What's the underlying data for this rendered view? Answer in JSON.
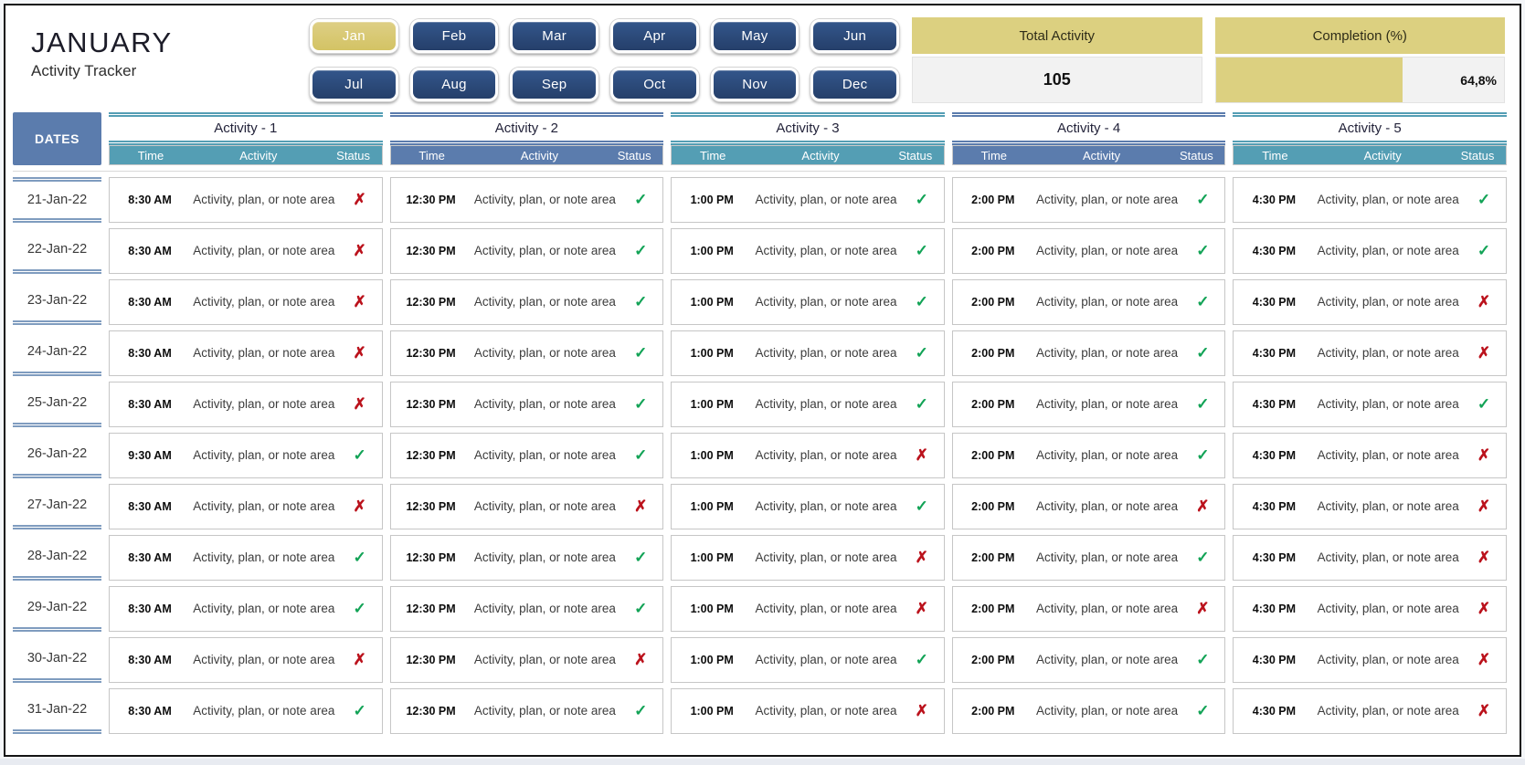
{
  "app": {
    "title": "JANUARY",
    "subtitle": "Activity Tracker"
  },
  "months": {
    "items": [
      "Jan",
      "Feb",
      "Mar",
      "Apr",
      "May",
      "Jun",
      "Jul",
      "Aug",
      "Sep",
      "Oct",
      "Nov",
      "Dec"
    ],
    "selected": "Jan"
  },
  "summary": {
    "total": {
      "label": "Total Activity",
      "value": "105"
    },
    "completion": {
      "label": "Completion (%)",
      "value": "64,8%",
      "percent": 64.8
    }
  },
  "colors": {
    "navy_button": "#2c4c7c",
    "selected_month": "#d8ca70",
    "khaki_header": "#dcd080",
    "teal_accent": "#549eb4",
    "blue_accent": "#5b7cad",
    "done_green": "#12a356",
    "missed_red": "#bb121c"
  },
  "table": {
    "dates_label": "DATES",
    "subcolumns": [
      "Time",
      "Activity",
      "Status"
    ],
    "groups": [
      {
        "title": "Activity - 1",
        "theme": "teal"
      },
      {
        "title": "Activity - 2",
        "theme": "blue"
      },
      {
        "title": "Activity - 3",
        "theme": "teal"
      },
      {
        "title": "Activity - 4",
        "theme": "blue"
      },
      {
        "title": "Activity - 5",
        "theme": "teal"
      }
    ],
    "note_text": "Activity, plan, or note area",
    "status_icons": {
      "done": "✓",
      "missed": "✗"
    },
    "rows": [
      {
        "date": "21-Jan-22",
        "cells": [
          {
            "time": "8:30 AM",
            "status": "missed"
          },
          {
            "time": "12:30 PM",
            "status": "done"
          },
          {
            "time": "1:00 PM",
            "status": "done"
          },
          {
            "time": "2:00 PM",
            "status": "done"
          },
          {
            "time": "4:30 PM",
            "status": "done"
          }
        ]
      },
      {
        "date": "22-Jan-22",
        "cells": [
          {
            "time": "8:30 AM",
            "status": "missed"
          },
          {
            "time": "12:30 PM",
            "status": "done"
          },
          {
            "time": "1:00 PM",
            "status": "done"
          },
          {
            "time": "2:00 PM",
            "status": "done"
          },
          {
            "time": "4:30 PM",
            "status": "done"
          }
        ]
      },
      {
        "date": "23-Jan-22",
        "cells": [
          {
            "time": "8:30 AM",
            "status": "missed"
          },
          {
            "time": "12:30 PM",
            "status": "done"
          },
          {
            "time": "1:00 PM",
            "status": "done"
          },
          {
            "time": "2:00 PM",
            "status": "done"
          },
          {
            "time": "4:30 PM",
            "status": "missed"
          }
        ]
      },
      {
        "date": "24-Jan-22",
        "cells": [
          {
            "time": "8:30 AM",
            "status": "missed"
          },
          {
            "time": "12:30 PM",
            "status": "done"
          },
          {
            "time": "1:00 PM",
            "status": "done"
          },
          {
            "time": "2:00 PM",
            "status": "done"
          },
          {
            "time": "4:30 PM",
            "status": "missed"
          }
        ]
      },
      {
        "date": "25-Jan-22",
        "cells": [
          {
            "time": "8:30 AM",
            "status": "missed"
          },
          {
            "time": "12:30 PM",
            "status": "done"
          },
          {
            "time": "1:00 PM",
            "status": "done"
          },
          {
            "time": "2:00 PM",
            "status": "done"
          },
          {
            "time": "4:30 PM",
            "status": "done"
          }
        ]
      },
      {
        "date": "26-Jan-22",
        "cells": [
          {
            "time": "9:30 AM",
            "status": "done"
          },
          {
            "time": "12:30 PM",
            "status": "done"
          },
          {
            "time": "1:00 PM",
            "status": "missed"
          },
          {
            "time": "2:00 PM",
            "status": "done"
          },
          {
            "time": "4:30 PM",
            "status": "missed"
          }
        ]
      },
      {
        "date": "27-Jan-22",
        "cells": [
          {
            "time": "8:30 AM",
            "status": "missed"
          },
          {
            "time": "12:30 PM",
            "status": "missed"
          },
          {
            "time": "1:00 PM",
            "status": "done"
          },
          {
            "time": "2:00 PM",
            "status": "missed"
          },
          {
            "time": "4:30 PM",
            "status": "missed"
          }
        ]
      },
      {
        "date": "28-Jan-22",
        "cells": [
          {
            "time": "8:30 AM",
            "status": "done"
          },
          {
            "time": "12:30 PM",
            "status": "done"
          },
          {
            "time": "1:00 PM",
            "status": "missed"
          },
          {
            "time": "2:00 PM",
            "status": "done"
          },
          {
            "time": "4:30 PM",
            "status": "missed"
          }
        ]
      },
      {
        "date": "29-Jan-22",
        "cells": [
          {
            "time": "8:30 AM",
            "status": "done"
          },
          {
            "time": "12:30 PM",
            "status": "done"
          },
          {
            "time": "1:00 PM",
            "status": "missed"
          },
          {
            "time": "2:00 PM",
            "status": "missed"
          },
          {
            "time": "4:30 PM",
            "status": "missed"
          }
        ]
      },
      {
        "date": "30-Jan-22",
        "cells": [
          {
            "time": "8:30 AM",
            "status": "missed"
          },
          {
            "time": "12:30 PM",
            "status": "missed"
          },
          {
            "time": "1:00 PM",
            "status": "done"
          },
          {
            "time": "2:00 PM",
            "status": "done"
          },
          {
            "time": "4:30 PM",
            "status": "missed"
          }
        ]
      },
      {
        "date": "31-Jan-22",
        "cells": [
          {
            "time": "8:30 AM",
            "status": "done"
          },
          {
            "time": "12:30 PM",
            "status": "done"
          },
          {
            "time": "1:00 PM",
            "status": "missed"
          },
          {
            "time": "2:00 PM",
            "status": "done"
          },
          {
            "time": "4:30 PM",
            "status": "missed"
          }
        ]
      }
    ]
  }
}
